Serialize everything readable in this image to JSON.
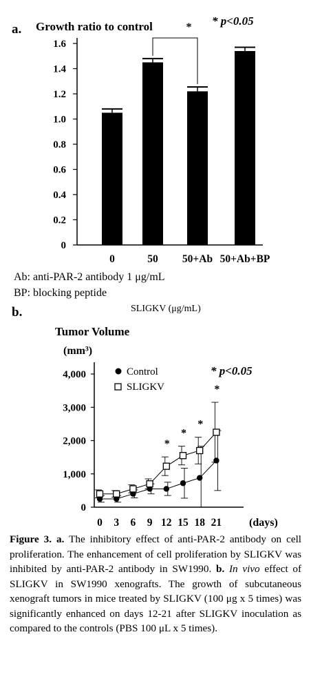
{
  "chart_data": [
    {
      "panel": "a.",
      "type": "bar",
      "title": "Growth ratio to control",
      "annotation": "* p<0.05",
      "significance_marker": "*",
      "significance_bracket": [
        "50",
        "50+Ab"
      ],
      "categories": [
        "0",
        "50",
        "50+Ab",
        "50+Ab+BP"
      ],
      "values": [
        1.05,
        1.45,
        1.22,
        1.54
      ],
      "errors": [
        0.03,
        0.03,
        0.035,
        0.03
      ],
      "ylim": [
        0,
        1.6
      ],
      "yticks": [
        "0",
        "0.2",
        "0.4",
        "0.6",
        "0.8",
        "1.0",
        "1.2",
        "1.4",
        "1.6"
      ],
      "grid": false,
      "bar_color": "#000000",
      "notes": [
        "Ab: anti-PAR-2 antibody 1 μg/mL",
        "BP: blocking peptide"
      ],
      "xlabel": "SLIGKV (μg/mL)"
    },
    {
      "panel": "b.",
      "type": "line",
      "title": "Tumor Volume",
      "ylabel": "(mm³)",
      "xlabel": "(days)",
      "annotation": "* p<0.05",
      "x": [
        0,
        3,
        6,
        9,
        12,
        15,
        18,
        21
      ],
      "xticks": [
        "0",
        "3",
        "6",
        "9",
        "12",
        "15",
        "18",
        "21"
      ],
      "ylim": [
        0,
        4000
      ],
      "yticks": [
        "0",
        "1,000",
        "2,000",
        "3,000",
        "4,000"
      ],
      "grid": false,
      "legend_position": "top-left",
      "significant_days": [
        12,
        15,
        18,
        21
      ],
      "significance_marker": "*",
      "series": [
        {
          "name": "Control",
          "marker": "filled-circle",
          "values": [
            250,
            250,
            400,
            550,
            550,
            720,
            880,
            1400
          ],
          "errors": [
            100,
            100,
            120,
            150,
            200,
            450,
            950,
            900
          ]
        },
        {
          "name": "SLIGKV",
          "marker": "open-square",
          "values": [
            400,
            400,
            550,
            700,
            1230,
            1550,
            1700,
            2250
          ],
          "errors": [
            120,
            100,
            120,
            150,
            280,
            280,
            400,
            900
          ]
        }
      ]
    }
  ],
  "caption": {
    "lead": "Figure 3.",
    "a_label": "a.",
    "a_text": "The inhibitory effect of anti-PAR-2 antibody on cell proliferation. The enhancement of cell proliferation by SLIGKV was inhibited by anti-PAR-2 antibody in SW1990.",
    "b_label": "b.",
    "b_italic": "In vivo",
    "b_text": "effect of SLIGKV in SW1990 xenografts. The growth of subcutaneous xenograft tumors in mice treated by SLIGKV (100 μg x 5 times) was significantly enhanced on days 12-21 after SLIGKV inoculation as compared to the controls (PBS 100 μL x 5 times)."
  }
}
